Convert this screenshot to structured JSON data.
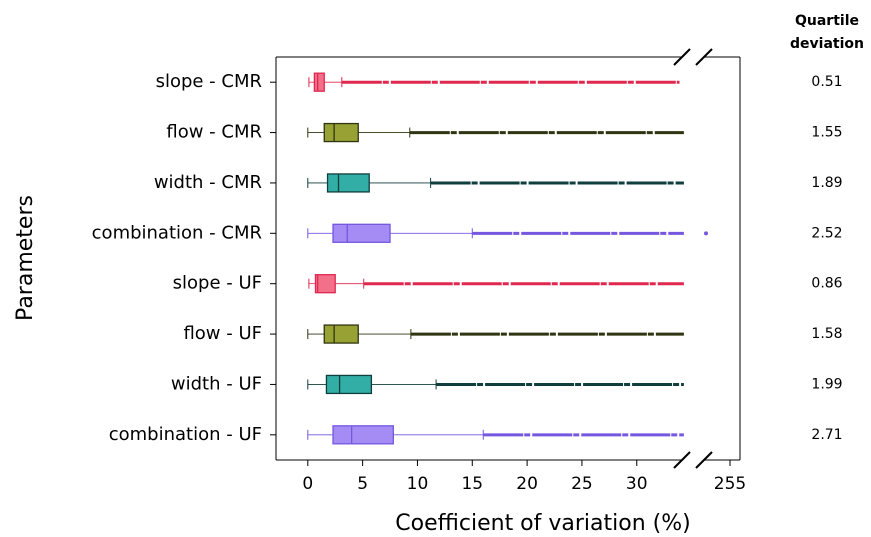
{
  "chart_data": {
    "type": "box",
    "orientation": "horizontal",
    "xlabel": "Coefficient of variation (%)",
    "ylabel": "Parameters",
    "categories": [
      "slope - CMR",
      "flow - CMR",
      "width - CMR",
      "combination - CMR",
      "slope - UF",
      "flow - UF",
      "width - UF",
      "combination - UF"
    ],
    "xlim": [
      -2.9,
      34.4
    ],
    "xticks": [
      0,
      5,
      10,
      15,
      20,
      25,
      30
    ],
    "x2lim": [
      252,
      256
    ],
    "x2ticks": [
      255
    ],
    "boxes": [
      {
        "min": 0.1,
        "q1": 0.6,
        "median": 0.9,
        "q3": 1.5,
        "whisker_high": 3.1,
        "max": 33.9,
        "outliers": [],
        "color": "#e0284f",
        "fill": "#f3708a"
      },
      {
        "min": 0,
        "q1": 1.5,
        "median": 2.4,
        "q3": 4.6,
        "whisker_high": 9.3,
        "max": 34.3,
        "outliers": [],
        "color": "#2f3510",
        "fill": "#98a234"
      },
      {
        "min": 0,
        "q1": 1.8,
        "median": 2.8,
        "q3": 5.6,
        "whisker_high": 11.2,
        "max": 34.3,
        "outliers": [],
        "color": "#0f3e3c",
        "fill": "#33aea6"
      },
      {
        "min": 0,
        "q1": 2.3,
        "median": 3.6,
        "q3": 7.5,
        "whisker_high": 15.0,
        "max": 34.3,
        "outliers": [
          252.6
        ],
        "color": "#7557e0",
        "fill": "#a58cf5"
      },
      {
        "min": 0.1,
        "q1": 0.7,
        "median": 0.9,
        "q3": 2.5,
        "whisker_high": 5.1,
        "max": 34.3,
        "outliers": [],
        "color": "#e0284f",
        "fill": "#f3708a"
      },
      {
        "min": 0,
        "q1": 1.5,
        "median": 2.4,
        "q3": 4.6,
        "whisker_high": 9.4,
        "max": 34.3,
        "outliers": [],
        "color": "#2f3510",
        "fill": "#98a234"
      },
      {
        "min": 0,
        "q1": 1.7,
        "median": 2.9,
        "q3": 5.8,
        "whisker_high": 11.7,
        "max": 34.3,
        "outliers": [],
        "color": "#0f3e3c",
        "fill": "#33aea6"
      },
      {
        "min": 0,
        "q1": 2.3,
        "median": 4.0,
        "q3": 7.8,
        "whisker_high": 16.0,
        "max": 34.3,
        "outliers": [],
        "color": "#7557e0",
        "fill": "#a58cf5"
      }
    ],
    "quartile_deviation": {
      "title": "Quartile deviation",
      "values": [
        0.51,
        1.55,
        1.89,
        2.52,
        0.86,
        1.58,
        1.99,
        2.71
      ]
    }
  }
}
